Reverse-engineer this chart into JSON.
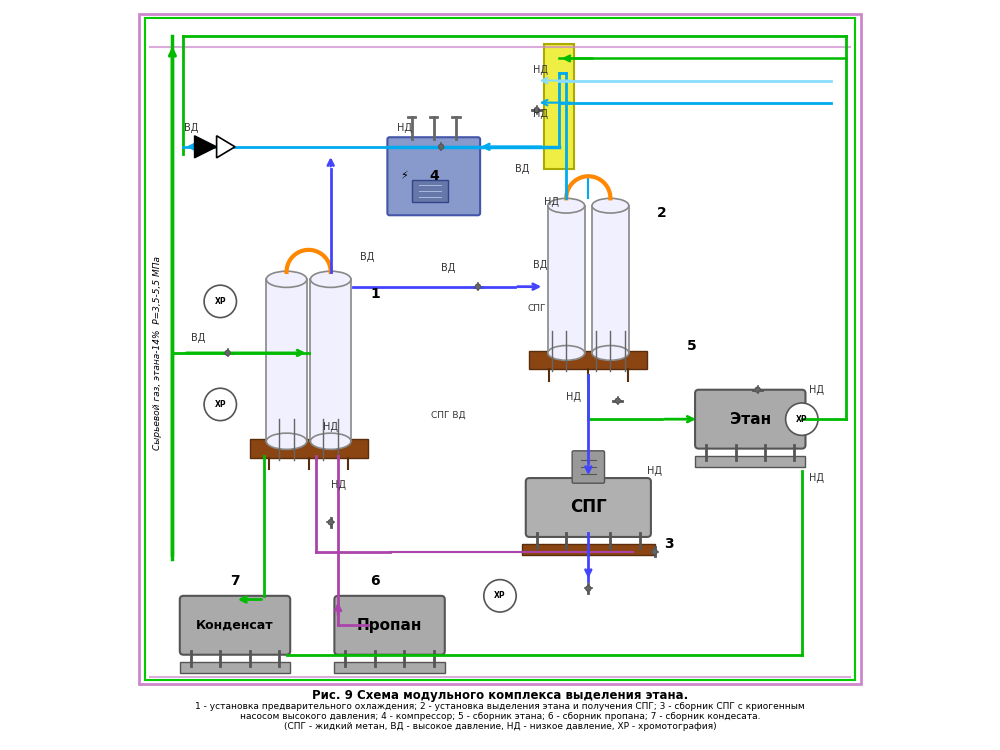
{
  "title": "Рис. 9 Схема модульного комплекса выделения этана.",
  "caption_lines": [
    "1 - установка предварительного охлаждения; 2 - установка выделения этана и получения СПГ; 3 - сборник СПГ с криогенным",
    "насосом высокого давления; 4 - компрессор; 5 - сборник этана; 6 - сборник пропана; 7 - сборник кондесата.",
    "(СПГ - жидкий метан, ВД - высокое давление, НД - низкое давление, ХР - хромотография)"
  ],
  "ylabel": "Сырьевой газ, этана-14%  Р=3,5-5,5 МПа",
  "bg_color": "#ffffff",
  "border_outer_color": "#cc88cc",
  "border_inner_color": "#00cc00",
  "colors": {
    "green": "#00bb00",
    "blue": "#4444ff",
    "cyan": "#00aaee",
    "light_cyan": "#88ddff",
    "purple": "#aa44aa",
    "orange": "#ff8800",
    "yellow_pipe": "#eeee44",
    "light_purple": "#cc88cc",
    "gray": "#888888",
    "dark_gray": "#555555",
    "brown": "#8B4513",
    "compressor_blue": "#8899cc",
    "tank_gray": "#aaaaaa",
    "white_vessel": "#f0f0ff"
  }
}
